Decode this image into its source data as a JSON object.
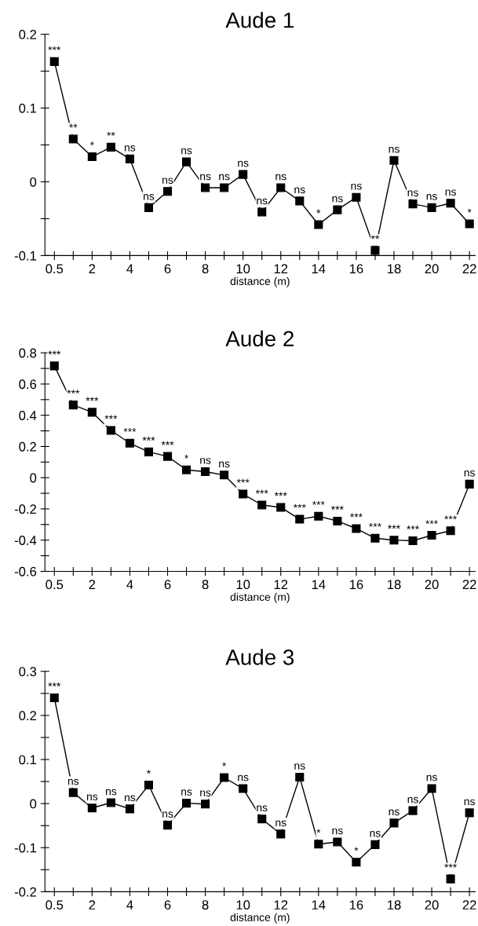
{
  "chart_data": [
    {
      "type": "line",
      "title": "Aude 1",
      "xlabel": "distance (m)",
      "categories": [
        "0.5",
        null,
        "2",
        null,
        "4",
        null,
        "6",
        null,
        "8",
        null,
        "10",
        null,
        "12",
        null,
        "14",
        null,
        "16",
        null,
        "18",
        null,
        "20",
        null,
        "22"
      ],
      "series": [
        {
          "color": "#000000",
          "values": [
            0.163,
            0.058,
            0.034,
            0.047,
            0.031,
            -0.035,
            -0.013,
            0.027,
            -0.008,
            -0.008,
            0.01,
            -0.041,
            -0.008,
            -0.026,
            -0.058,
            -0.038,
            -0.021,
            -0.093,
            0.029,
            -0.03,
            -0.035,
            -0.029,
            -0.057
          ],
          "value_labels": [
            "***",
            "**",
            "*",
            "**",
            "ns",
            "ns",
            "ns",
            "ns",
            "ns",
            "ns",
            "ns",
            "ns",
            "ns",
            "ns",
            "*",
            "ns",
            "ns",
            "**",
            "ns",
            "ns",
            "ns",
            "ns",
            "*"
          ]
        }
      ],
      "ylim": [
        -0.1,
        0.2
      ],
      "yticks": [
        -0.1,
        {
          "value": -0.05,
          "label": null
        },
        0,
        {
          "value": 0.05,
          "label": null
        },
        0.1,
        {
          "value": 0.15,
          "label": null
        },
        0.2
      ],
      "marker": "square",
      "line_style": "solid"
    },
    {
      "type": "line",
      "title": "Aude 2",
      "xlabel": "distance (m)",
      "categories": [
        "0.5",
        null,
        "2",
        null,
        "4",
        null,
        "6",
        null,
        "8",
        null,
        "10",
        null,
        "12",
        null,
        "14",
        null,
        "16",
        null,
        "18",
        null,
        "20",
        null,
        "22"
      ],
      "series": [
        {
          "color": "#000000",
          "values": [
            0.716,
            0.466,
            0.419,
            0.303,
            0.221,
            0.165,
            0.136,
            0.05,
            0.039,
            0.017,
            -0.105,
            -0.175,
            -0.19,
            -0.266,
            -0.247,
            -0.278,
            -0.326,
            -0.388,
            -0.4,
            -0.404,
            -0.369,
            -0.34,
            -0.041
          ],
          "value_labels": [
            "***",
            "***",
            "***",
            "***",
            "***",
            "***",
            "***",
            "*",
            "ns",
            "ns",
            "***",
            "***",
            "***",
            "***",
            "***",
            "***",
            "***",
            "***",
            "***",
            "***",
            "***",
            "***",
            "ns"
          ]
        }
      ],
      "ylim": [
        -0.6,
        0.8
      ],
      "yticks": [
        -0.6,
        {
          "value": -0.5,
          "label": null
        },
        -0.4,
        {
          "value": -0.3,
          "label": null
        },
        -0.2,
        {
          "value": -0.1,
          "label": null
        },
        0,
        {
          "value": 0.1,
          "label": null
        },
        0.2,
        {
          "value": 0.3,
          "label": null
        },
        0.4,
        {
          "value": 0.5,
          "label": null
        },
        0.6,
        {
          "value": 0.7,
          "label": null
        },
        0.8
      ],
      "marker": "square",
      "line_style": "solid"
    },
    {
      "type": "line",
      "title": "Aude 3",
      "xlabel": "distance (m)",
      "categories": [
        "0.5",
        null,
        "2",
        null,
        "4",
        null,
        "6",
        null,
        "8",
        null,
        "10",
        null,
        "12",
        null,
        "14",
        null,
        "16",
        null,
        "18",
        null,
        "20",
        null,
        "22"
      ],
      "series": [
        {
          "color": "#000000",
          "values": [
            0.24,
            0.025,
            -0.01,
            0.002,
            -0.012,
            0.042,
            -0.049,
            0.001,
            -0.001,
            0.059,
            0.034,
            -0.035,
            -0.069,
            0.06,
            -0.092,
            -0.087,
            -0.133,
            -0.093,
            -0.044,
            -0.016,
            0.034,
            -0.171,
            -0.021
          ],
          "value_labels": [
            "***",
            "ns",
            "ns",
            "ns",
            "ns",
            "*",
            "ns",
            "ns",
            "ns",
            "*",
            "ns",
            "ns",
            "ns",
            "ns",
            "*",
            "ns",
            "*",
            "ns",
            "ns",
            "ns",
            "ns",
            "***",
            "ns"
          ]
        }
      ],
      "ylim": [
        -0.2,
        0.3
      ],
      "yticks": [
        -0.2,
        {
          "value": -0.15,
          "label": null
        },
        -0.1,
        {
          "value": -0.05,
          "label": null
        },
        0,
        {
          "value": 0.05,
          "label": null
        },
        0.1,
        {
          "value": 0.15,
          "label": null
        },
        0.2,
        {
          "value": 0.25,
          "label": null
        },
        0.3
      ],
      "marker": "square",
      "line_style": "solid"
    }
  ]
}
